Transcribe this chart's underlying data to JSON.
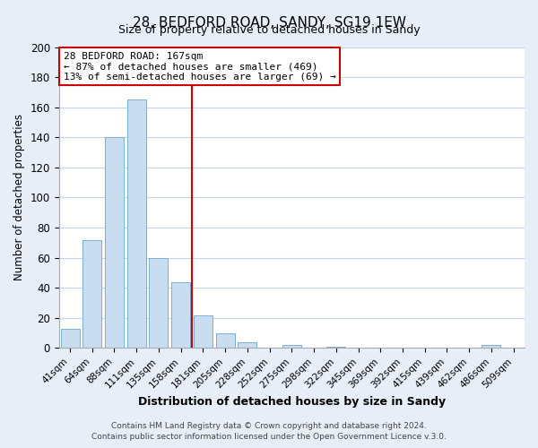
{
  "title": "28, BEDFORD ROAD, SANDY, SG19 1EW",
  "subtitle": "Size of property relative to detached houses in Sandy",
  "xlabel": "Distribution of detached houses by size in Sandy",
  "ylabel": "Number of detached properties",
  "bar_color": "#c8ddf0",
  "bar_edge_color": "#7aafd4",
  "categories": [
    "41sqm",
    "64sqm",
    "88sqm",
    "111sqm",
    "135sqm",
    "158sqm",
    "181sqm",
    "205sqm",
    "228sqm",
    "252sqm",
    "275sqm",
    "298sqm",
    "322sqm",
    "345sqm",
    "369sqm",
    "392sqm",
    "415sqm",
    "439sqm",
    "462sqm",
    "486sqm",
    "509sqm"
  ],
  "values": [
    13,
    72,
    140,
    165,
    60,
    44,
    22,
    10,
    4,
    0,
    2,
    0,
    1,
    0,
    0,
    0,
    0,
    0,
    0,
    2,
    0
  ],
  "ylim": [
    0,
    200
  ],
  "yticks": [
    0,
    20,
    40,
    60,
    80,
    100,
    120,
    140,
    160,
    180,
    200
  ],
  "vline_x": 5.5,
  "vline_color": "#cc0000",
  "annotation_title": "28 BEDFORD ROAD: 167sqm",
  "annotation_line1": "← 87% of detached houses are smaller (469)",
  "annotation_line2": "13% of semi-detached houses are larger (69) →",
  "annotation_box_color": "#ffffff",
  "annotation_box_edge": "#cc0000",
  "footer_line1": "Contains HM Land Registry data © Crown copyright and database right 2024.",
  "footer_line2": "Contains public sector information licensed under the Open Government Licence v.3.0.",
  "background_color": "#e8eef8",
  "plot_background": "#ffffff",
  "grid_color": "#c8d4e8"
}
